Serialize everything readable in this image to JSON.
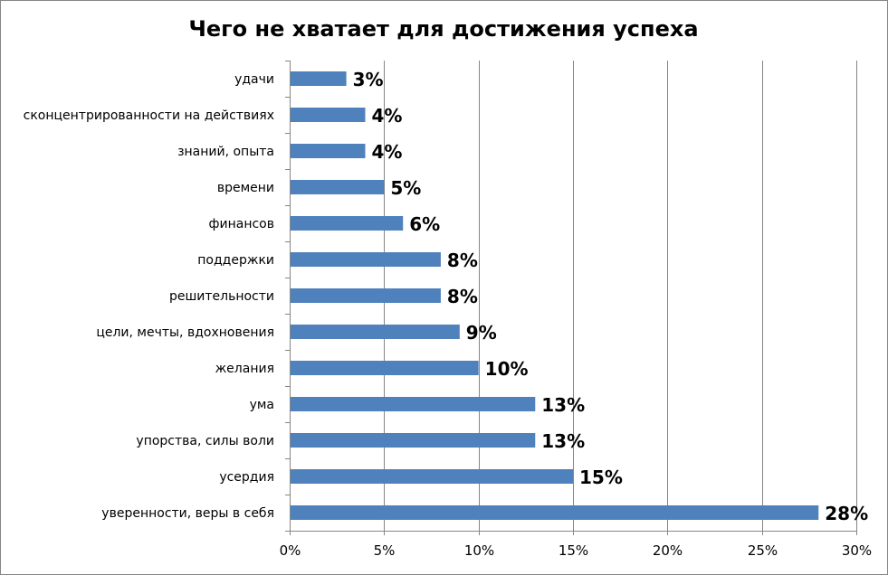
{
  "chart_data": {
    "type": "bar",
    "orientation": "horizontal",
    "title": "Чего не хватает для достижения успеха",
    "xlabel": "",
    "ylabel": "",
    "categories": [
      "удачи",
      "сконцентрированности на действиях",
      "знаний, опыта",
      "времени",
      "финансов",
      "поддержки",
      "решительности",
      "цели, мечты, вдохновения",
      "желания",
      "ума",
      "упорства, силы воли",
      "усердия",
      "уверенности, веры в себя"
    ],
    "values": [
      3,
      4,
      4,
      5,
      6,
      8,
      8,
      9,
      10,
      13,
      13,
      15,
      28
    ],
    "data_labels": [
      "3%",
      "4%",
      "4%",
      "5%",
      "6%",
      "8%",
      "8%",
      "9%",
      "10%",
      "13%",
      "13%",
      "15%",
      "28%"
    ],
    "xlim": [
      0,
      30
    ],
    "x_ticks": [
      "0%",
      "5%",
      "10%",
      "15%",
      "20%",
      "25%",
      "30%"
    ],
    "grid": "vertical",
    "legend": "none",
    "bar_color": "#4f81bd"
  }
}
